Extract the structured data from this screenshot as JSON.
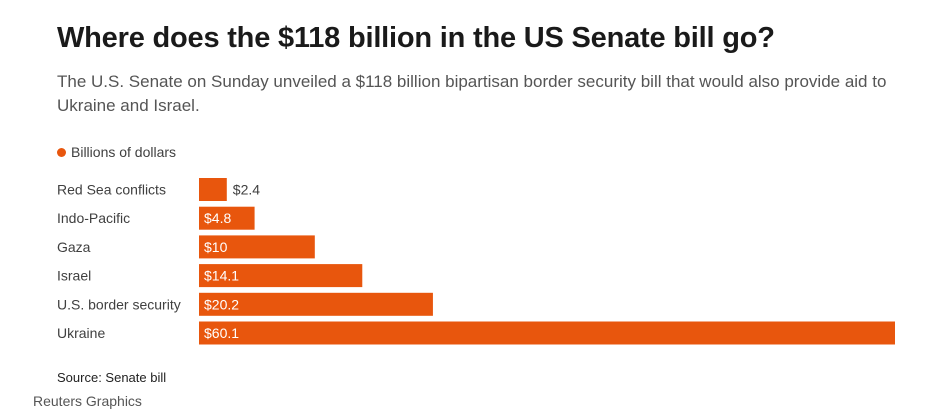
{
  "header": {
    "title": "Where does the $118 billion in the US Senate bill go?",
    "subtitle": "The U.S. Senate on Sunday unveiled a $118 billion bipartisan border security bill that would also provide aid to Ukraine and Israel."
  },
  "legend": {
    "label": "Billions of dollars",
    "color": "#e8560d"
  },
  "chart_data": {
    "type": "bar",
    "orientation": "horizontal",
    "categories": [
      "Red Sea conflicts",
      "Indo-Pacific",
      "Gaza",
      "Israel",
      "U.S. border security",
      "Ukraine"
    ],
    "values": [
      2.4,
      4.8,
      10,
      14.1,
      20.2,
      60.1
    ],
    "data_labels": [
      "$2.4",
      "$4.8",
      "$10",
      "$14.1",
      "$20.2",
      "$60.1"
    ],
    "series": [
      {
        "name": "Billions of dollars",
        "values": [
          2.4,
          4.8,
          10,
          14.1,
          20.2,
          60.1
        ]
      }
    ],
    "xlim": [
      0,
      60.1
    ],
    "grid": false,
    "legend_position": "top-left",
    "bar_color": "#e8560d"
  },
  "footer": {
    "source": "Source: Senate bill",
    "credit": "Reuters Graphics"
  }
}
